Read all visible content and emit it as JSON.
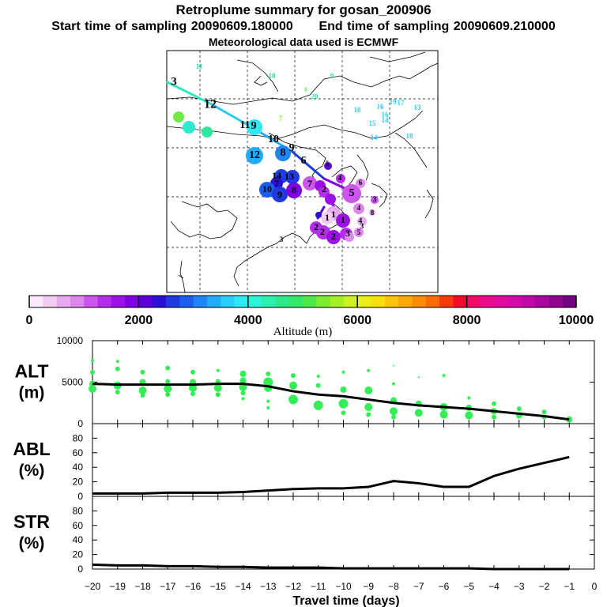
{
  "header": {
    "title": "Retroplume summary for gosan_200906",
    "start_label": "Start time of sampling",
    "start_value": "20090609.180000",
    "end_label": "End time of sampling",
    "end_value": "20090609.210000",
    "met_line": "Meteorological data used is ECMWF"
  },
  "colorbar": {
    "title": "Altitude (m)",
    "ticks": [
      "0",
      "2000",
      "4000",
      "6000",
      "8000",
      "10000"
    ],
    "range": [
      0,
      10000
    ],
    "colors": [
      "#fbe8fb",
      "#f3ccf3",
      "#e9abef",
      "#dd88ee",
      "#cc55ee",
      "#b32ee8",
      "#9a12e6",
      "#7f00e0",
      "#5c00d6",
      "#2a10d4",
      "#1e3ae0",
      "#1a5ef0",
      "#1f86f5",
      "#23aaf8",
      "#28cdfa",
      "#2ee8f4",
      "#2ef3d6",
      "#2ef0ad",
      "#2ee98a",
      "#34e86a",
      "#4ee84a",
      "#7cec32",
      "#a6ee28",
      "#ccf020",
      "#eaee18",
      "#f8e010",
      "#fcc40c",
      "#fca808",
      "#fb8c06",
      "#fa6a06",
      "#f83a0a",
      "#f50a2a",
      "#f00a6a",
      "#ea0a8a",
      "#e00aa0",
      "#d40aa8",
      "#c008a8",
      "#a8069e",
      "#900490",
      "#740480"
    ]
  },
  "map": {
    "labels": [
      {
        "t": "11",
        "c": "#2ee8a0"
      },
      {
        "t": "10",
        "c": "#2ee890"
      },
      {
        "t": "9",
        "c": "#2ee890"
      },
      {
        "t": "8",
        "c": "#6ee84a"
      },
      {
        "t": "20",
        "c": "#2ee890"
      },
      {
        "t": "18",
        "c": "#28cdfa"
      },
      {
        "t": "16",
        "c": "#28cdfa"
      },
      {
        "t": "19",
        "c": "#28cdfa"
      },
      {
        "t": "17",
        "c": "#28cdfa"
      },
      {
        "t": "13",
        "c": "#28cdfa"
      },
      {
        "t": "15",
        "c": "#28cdfa"
      },
      {
        "t": "16",
        "c": "#28cdfa"
      },
      {
        "t": "14",
        "c": "#28cdfa"
      },
      {
        "t": "14",
        "c": "#28cdfa"
      },
      {
        "t": "18",
        "c": "#28cdfa"
      },
      {
        "t": "3",
        "c": "#000"
      },
      {
        "t": "12",
        "c": "#000"
      },
      {
        "t": "10",
        "c": "#7cec32"
      },
      {
        "t": "13",
        "c": "#2ee8d0"
      },
      {
        "t": "11",
        "c": "#2ee8a0"
      },
      {
        "t": "7",
        "c": "#7cec32"
      },
      {
        "t": "11",
        "c": "#000"
      },
      {
        "t": "9",
        "c": "#000"
      },
      {
        "t": "10",
        "c": "#000"
      },
      {
        "t": "12",
        "c": "#000"
      },
      {
        "t": "8",
        "c": "#000"
      },
      {
        "t": "9",
        "c": "#000"
      },
      {
        "t": "6",
        "c": "#000"
      },
      {
        "t": "14",
        "c": "#000"
      },
      {
        "t": "13",
        "c": "#000"
      },
      {
        "t": "7",
        "c": "#000"
      },
      {
        "t": "10",
        "c": "#000"
      },
      {
        "t": "9",
        "c": "#000"
      },
      {
        "t": "8",
        "c": "#000"
      },
      {
        "t": "7",
        "c": "#000"
      },
      {
        "t": "5",
        "c": "#000"
      },
      {
        "t": "4",
        "c": "#000"
      },
      {
        "t": "2",
        "c": "#000"
      },
      {
        "t": "5",
        "c": "#000"
      },
      {
        "t": "6",
        "c": "#000"
      },
      {
        "t": "3",
        "c": "#000"
      },
      {
        "t": "4",
        "c": "#000"
      },
      {
        "t": "8",
        "c": "#000"
      },
      {
        "t": "1",
        "c": "#000"
      },
      {
        "t": "1",
        "c": "#000"
      },
      {
        "t": "1",
        "c": "#000"
      },
      {
        "t": "4",
        "c": "#000"
      },
      {
        "t": "3",
        "c": "#000"
      },
      {
        "t": "2",
        "c": "#000"
      },
      {
        "t": "2",
        "c": "#000"
      },
      {
        "t": "2",
        "c": "#000"
      },
      {
        "t": "3",
        "c": "#000"
      },
      {
        "t": "5",
        "c": "#000"
      },
      {
        "t": "3",
        "c": "#000"
      }
    ]
  },
  "chart_data": [
    {
      "type": "scatter",
      "title": "ALT",
      "ylabel": "(m)",
      "ylim": [
        0,
        10000
      ],
      "yticks": [
        "0",
        "5000",
        "10000"
      ],
      "line_x": [
        -20,
        -19,
        -18,
        -17,
        -16,
        -15,
        -14,
        -13,
        -12,
        -11,
        -10,
        -9,
        -8,
        -7,
        -6,
        -5,
        -4,
        -3,
        -2,
        -1
      ],
      "line_y": [
        4800,
        4700,
        4700,
        4700,
        4700,
        4800,
        4800,
        4500,
        3900,
        3500,
        3300,
        2900,
        2500,
        2200,
        2000,
        1800,
        1500,
        1200,
        900,
        500
      ],
      "points": [
        {
          "x": -20,
          "y": 7600,
          "s": 2
        },
        {
          "x": -20,
          "y": 6200,
          "s": 3
        },
        {
          "x": -20,
          "y": 4800,
          "s": 4
        },
        {
          "x": -20,
          "y": 4200,
          "s": 5
        },
        {
          "x": -19,
          "y": 7500,
          "s": 2
        },
        {
          "x": -19,
          "y": 6600,
          "s": 3
        },
        {
          "x": -19,
          "y": 4600,
          "s": 5
        },
        {
          "x": -19,
          "y": 3800,
          "s": 3
        },
        {
          "x": -18,
          "y": 6200,
          "s": 3
        },
        {
          "x": -18,
          "y": 5000,
          "s": 4
        },
        {
          "x": -18,
          "y": 4000,
          "s": 5
        },
        {
          "x": -18,
          "y": 3400,
          "s": 3
        },
        {
          "x": -17,
          "y": 6700,
          "s": 3
        },
        {
          "x": -17,
          "y": 5100,
          "s": 3
        },
        {
          "x": -17,
          "y": 4200,
          "s": 5
        },
        {
          "x": -17,
          "y": 3500,
          "s": 3
        },
        {
          "x": -16,
          "y": 6200,
          "s": 3
        },
        {
          "x": -16,
          "y": 5000,
          "s": 4
        },
        {
          "x": -16,
          "y": 4300,
          "s": 5
        },
        {
          "x": -16,
          "y": 3600,
          "s": 3
        },
        {
          "x": -15,
          "y": 6400,
          "s": 2
        },
        {
          "x": -15,
          "y": 5100,
          "s": 3
        },
        {
          "x": -15,
          "y": 4300,
          "s": 5
        },
        {
          "x": -15,
          "y": 3500,
          "s": 3
        },
        {
          "x": -14,
          "y": 6000,
          "s": 4
        },
        {
          "x": -14,
          "y": 5200,
          "s": 4
        },
        {
          "x": -14,
          "y": 4400,
          "s": 5
        },
        {
          "x": -14,
          "y": 3700,
          "s": 3
        },
        {
          "x": -14,
          "y": 3000,
          "s": 2
        },
        {
          "x": -13,
          "y": 6000,
          "s": 3
        },
        {
          "x": -13,
          "y": 5000,
          "s": 6
        },
        {
          "x": -13,
          "y": 4300,
          "s": 5
        },
        {
          "x": -13,
          "y": 2700,
          "s": 2
        },
        {
          "x": -13,
          "y": 1900,
          "s": 2
        },
        {
          "x": -12,
          "y": 5800,
          "s": 3
        },
        {
          "x": -12,
          "y": 4600,
          "s": 5
        },
        {
          "x": -12,
          "y": 2900,
          "s": 6
        },
        {
          "x": -11,
          "y": 5700,
          "s": 2
        },
        {
          "x": -11,
          "y": 4600,
          "s": 3
        },
        {
          "x": -11,
          "y": 2200,
          "s": 6
        },
        {
          "x": -10,
          "y": 6200,
          "s": 2
        },
        {
          "x": -10,
          "y": 4100,
          "s": 4
        },
        {
          "x": -10,
          "y": 2400,
          "s": 6
        },
        {
          "x": -10,
          "y": 1300,
          "s": 3
        },
        {
          "x": -9,
          "y": 6400,
          "s": 2
        },
        {
          "x": -9,
          "y": 4000,
          "s": 5
        },
        {
          "x": -9,
          "y": 2000,
          "s": 5
        },
        {
          "x": -9,
          "y": 1100,
          "s": 3
        },
        {
          "x": -8,
          "y": 7000,
          "s": 1
        },
        {
          "x": -8,
          "y": 4800,
          "s": 2
        },
        {
          "x": -8,
          "y": 2800,
          "s": 4
        },
        {
          "x": -8,
          "y": 1500,
          "s": 5
        },
        {
          "x": -8,
          "y": 800,
          "s": 3
        },
        {
          "x": -7,
          "y": 5600,
          "s": 1
        },
        {
          "x": -7,
          "y": 2400,
          "s": 4
        },
        {
          "x": -7,
          "y": 1300,
          "s": 5
        },
        {
          "x": -6,
          "y": 5800,
          "s": 2
        },
        {
          "x": -6,
          "y": 2000,
          "s": 5
        },
        {
          "x": -6,
          "y": 1100,
          "s": 5
        },
        {
          "x": -5,
          "y": 3100,
          "s": 2
        },
        {
          "x": -5,
          "y": 1900,
          "s": 4
        },
        {
          "x": -5,
          "y": 1000,
          "s": 5
        },
        {
          "x": -4,
          "y": 2400,
          "s": 3
        },
        {
          "x": -4,
          "y": 1500,
          "s": 4
        },
        {
          "x": -4,
          "y": 800,
          "s": 3
        },
        {
          "x": -3,
          "y": 1800,
          "s": 3
        },
        {
          "x": -3,
          "y": 1000,
          "s": 4
        },
        {
          "x": -2,
          "y": 1400,
          "s": 3
        },
        {
          "x": -2,
          "y": 800,
          "s": 3
        },
        {
          "x": -1,
          "y": 500,
          "s": 4
        }
      ]
    },
    {
      "type": "line",
      "title": "ABL",
      "ylabel": "(%)",
      "ylim": [
        0,
        100
      ],
      "yticks": [
        "0",
        "20",
        "40",
        "60",
        "80"
      ],
      "x": [
        -20,
        -19,
        -18,
        -17,
        -16,
        -15,
        -14,
        -13,
        -12,
        -11,
        -10,
        -9,
        -8,
        -7,
        -6,
        -5,
        -4,
        -3,
        -2,
        -1
      ],
      "y": [
        4,
        4,
        4,
        5,
        5,
        5,
        6,
        8,
        10,
        11,
        11,
        13,
        21,
        18,
        13,
        13,
        28,
        38,
        46,
        54
      ]
    },
    {
      "type": "line",
      "title": "STR",
      "ylabel": "(%)",
      "ylim": [
        0,
        100
      ],
      "yticks": [
        "0",
        "20",
        "40",
        "60",
        "80"
      ],
      "x": [
        -20,
        -19,
        -18,
        -17,
        -16,
        -15,
        -14,
        -13,
        -12,
        -11,
        -10,
        -9,
        -8,
        -7,
        -6,
        -5,
        -4,
        -3,
        -2,
        -1
      ],
      "y": [
        6,
        5,
        5,
        4,
        4,
        3,
        3,
        2,
        2,
        2,
        1,
        1,
        1,
        1,
        1,
        1,
        0,
        0,
        0,
        0
      ]
    }
  ],
  "xaxis": {
    "label": "Travel time (days)",
    "ticks": [
      "−20",
      "−19",
      "−18",
      "−17",
      "−16",
      "−15",
      "−14",
      "−13",
      "−12",
      "−11",
      "−10",
      "−9",
      "−8",
      "−7",
      "−6",
      "−5",
      "−4",
      "−3",
      "−2",
      "−1",
      "0"
    ]
  }
}
